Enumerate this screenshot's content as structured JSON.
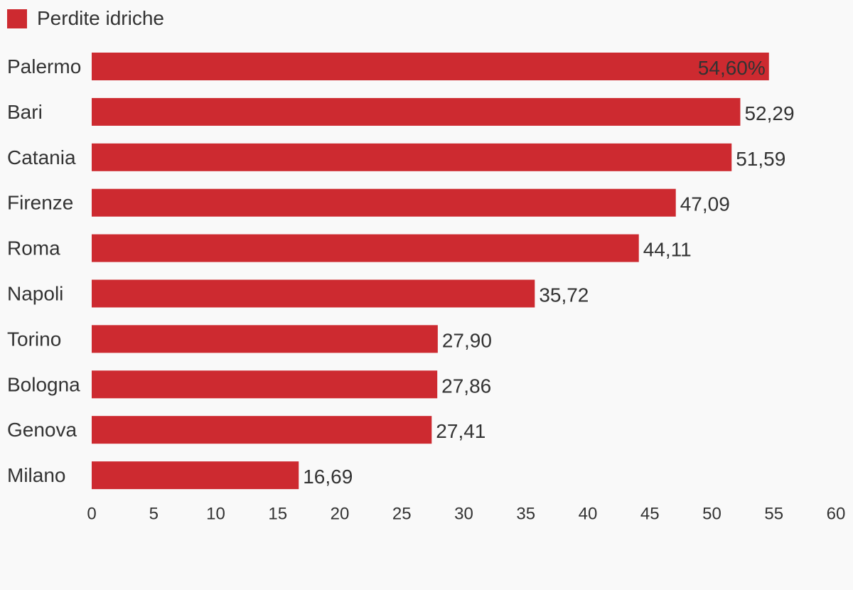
{
  "chart_data": {
    "type": "bar",
    "orientation": "horizontal",
    "title": "",
    "xlabel": "",
    "ylabel": "",
    "legend": {
      "placement": "top-left",
      "entries": [
        "Perdite idriche"
      ]
    },
    "categories": [
      "Palermo",
      "Bari",
      "Catania",
      "Firenze",
      "Roma",
      "Napoli",
      "Torino",
      "Bologna",
      "Genova",
      "Milano"
    ],
    "series": [
      {
        "name": "Perdite idriche",
        "color": "#cd2a30",
        "values": [
          54.6,
          52.29,
          51.59,
          47.09,
          44.11,
          35.72,
          27.9,
          27.86,
          27.41,
          16.69
        ],
        "labels": [
          "54,60%",
          "52,29",
          "51,59",
          "47,09",
          "44,11",
          "35,72",
          "27,90",
          "27,86",
          "27,41",
          "16,69"
        ]
      }
    ],
    "xlim": [
      0,
      60
    ],
    "xticks": [
      0,
      5,
      10,
      15,
      20,
      25,
      30,
      35,
      40,
      45,
      50,
      55,
      60
    ],
    "grid": false
  }
}
